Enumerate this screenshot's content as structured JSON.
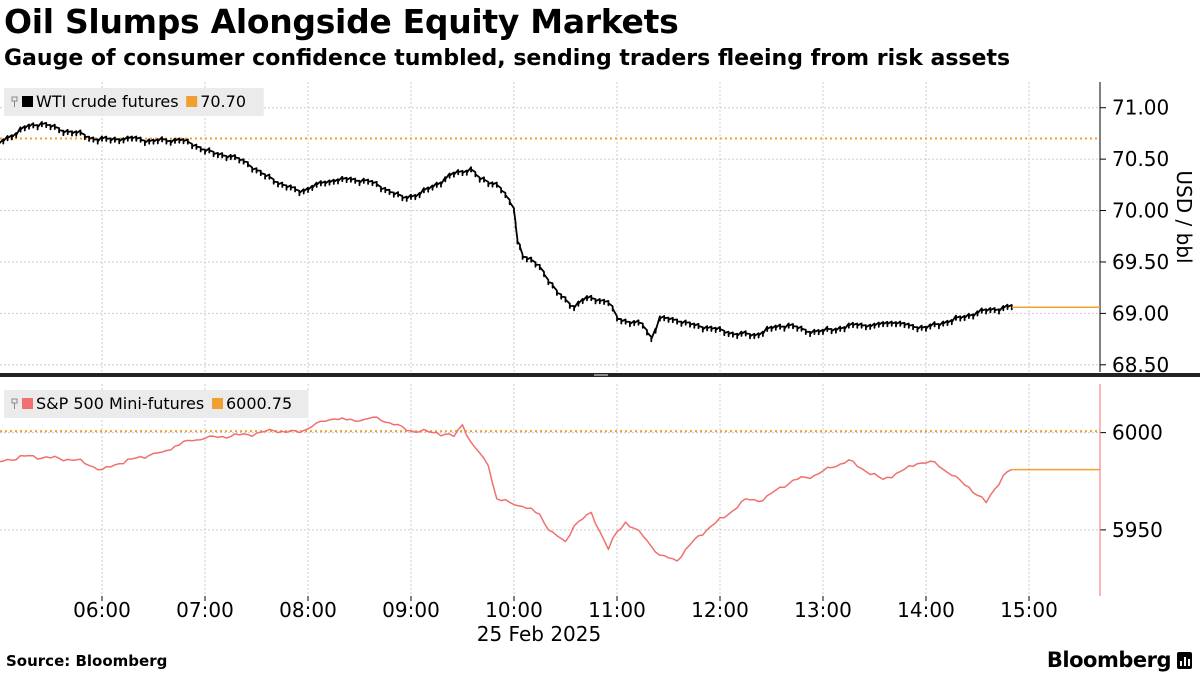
{
  "title": "Oil Slumps Alongside Equity Markets",
  "subtitle": "Gauge of consumer confidence tumbled, sending traders fleeing from risk assets",
  "source": "Source: Bloomberg",
  "brand": "Bloomberg",
  "colors": {
    "oil": "#000000",
    "spx": "#f07070",
    "last_marker": "#f0a030",
    "grid": "#cccccc"
  },
  "chart_data": [
    {
      "type": "line",
      "panel": "top",
      "legend": {
        "series_name": "WTI crude futures",
        "last_value_label": "70.70"
      },
      "ylabel": "USD / bbl",
      "yticks": [
        71.0,
        70.5,
        70.0,
        69.5,
        69.0,
        68.5
      ],
      "ytick_labels": [
        "71.00",
        "70.50",
        "70.00",
        "69.50",
        "69.00",
        "68.50"
      ],
      "ylim": [
        68.43,
        71.25
      ],
      "reference_line": 70.7,
      "last_value": 69.06,
      "series": [
        {
          "name": "WTI crude futures",
          "x": [
            "05:00",
            "05:15",
            "05:25",
            "05:35",
            "05:45",
            "05:55",
            "06:05",
            "06:15",
            "06:30",
            "06:45",
            "06:55",
            "07:05",
            "07:15",
            "07:25",
            "07:35",
            "07:45",
            "07:55",
            "08:05",
            "08:15",
            "08:25",
            "08:35",
            "08:45",
            "08:55",
            "09:05",
            "09:15",
            "09:25",
            "09:35",
            "09:40",
            "09:50",
            "09:55",
            "10:00",
            "10:02",
            "10:05",
            "10:15",
            "10:25",
            "10:35",
            "10:40",
            "10:45",
            "10:55",
            "11:00",
            "11:05",
            "11:15",
            "11:20",
            "11:25",
            "11:35",
            "11:45",
            "11:55",
            "12:05",
            "12:20",
            "12:30",
            "12:40",
            "12:50",
            "13:00",
            "13:10",
            "13:20",
            "13:30",
            "13:40",
            "13:50",
            "14:00",
            "14:10",
            "14:20",
            "14:30",
            "14:45",
            "14:50"
          ],
          "values": [
            70.65,
            70.8,
            70.84,
            70.78,
            70.75,
            70.69,
            70.68,
            70.7,
            70.67,
            70.68,
            70.62,
            70.55,
            70.52,
            70.45,
            70.33,
            70.25,
            70.17,
            70.25,
            70.28,
            70.3,
            70.28,
            70.2,
            70.12,
            70.15,
            70.25,
            70.35,
            70.4,
            70.3,
            70.25,
            70.15,
            70.0,
            69.7,
            69.55,
            69.45,
            69.2,
            69.05,
            69.12,
            69.15,
            69.1,
            68.95,
            68.92,
            68.88,
            68.75,
            68.95,
            68.92,
            68.88,
            68.85,
            68.8,
            68.78,
            68.85,
            68.88,
            68.82,
            68.82,
            68.85,
            68.88,
            68.88,
            68.9,
            68.88,
            68.85,
            68.9,
            68.95,
            69.0,
            69.05,
            69.06
          ]
        }
      ]
    },
    {
      "type": "line",
      "panel": "bottom",
      "legend": {
        "series_name": "S&P 500 Mini-futures",
        "last_value_label": "6000.75"
      },
      "yticks": [
        6000,
        5950
      ],
      "ytick_labels": [
        "6000",
        "5950"
      ],
      "ylim": [
        5916,
        6025
      ],
      "reference_line": 6000.75,
      "last_value": 5981,
      "series": [
        {
          "name": "S&P 500 Mini-futures",
          "x": [
            "05:00",
            "05:15",
            "05:30",
            "05:45",
            "06:00",
            "06:10",
            "06:20",
            "06:35",
            "06:50",
            "07:00",
            "07:10",
            "07:25",
            "07:40",
            "07:55",
            "08:05",
            "08:15",
            "08:30",
            "08:40",
            "08:50",
            "09:00",
            "09:15",
            "09:25",
            "09:30",
            "09:35",
            "09:45",
            "09:50",
            "10:00",
            "10:05",
            "10:15",
            "10:20",
            "10:25",
            "10:30",
            "10:35",
            "10:45",
            "10:55",
            "11:00",
            "11:05",
            "11:15",
            "11:25",
            "11:35",
            "11:45",
            "11:55",
            "12:05",
            "12:15",
            "12:25",
            "12:35",
            "12:45",
            "12:55",
            "13:05",
            "13:15",
            "13:25",
            "13:35",
            "13:45",
            "13:55",
            "14:05",
            "14:15",
            "14:25",
            "14:35",
            "14:45",
            "14:50"
          ],
          "values": [
            5985,
            5988,
            5987,
            5986,
            5981,
            5984,
            5987,
            5990,
            5996,
            5997,
            5998,
            5999,
            6001,
            6000,
            6005,
            6007,
            6006,
            6008,
            6004,
            6001,
            6000,
            5998,
            6004,
            5995,
            5983,
            5966,
            5963,
            5962,
            5958,
            5950,
            5947,
            5944,
            5952,
            5959,
            5940,
            5949,
            5954,
            5947,
            5937,
            5934,
            5945,
            5952,
            5958,
            5966,
            5965,
            5972,
            5976,
            5978,
            5982,
            5986,
            5980,
            5976,
            5980,
            5984,
            5985,
            5978,
            5972,
            5964,
            5978,
            5981
          ]
        }
      ]
    }
  ],
  "xaxis": {
    "tick_labels": [
      "06:00",
      "07:00",
      "08:00",
      "09:00",
      "10:00",
      "11:00",
      "12:00",
      "13:00",
      "14:00",
      "15:00"
    ],
    "date_label": "25 Feb 2025"
  }
}
